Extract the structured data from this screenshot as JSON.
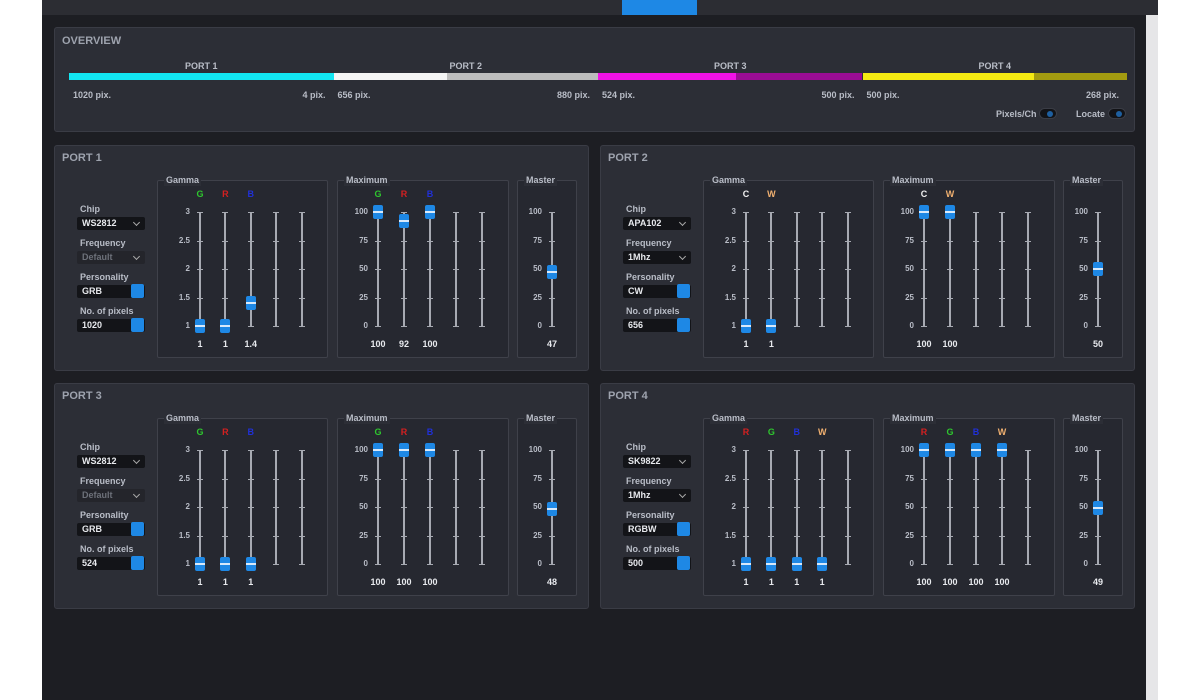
{
  "overview": {
    "title": "OVERVIEW",
    "ports": [
      {
        "label": "PORT 1",
        "start": "1020 pix.",
        "end": "4 pix.",
        "colors": [
          "#12e6f2",
          "#12e6f2"
        ]
      },
      {
        "label": "PORT 2",
        "start": "656 pix.",
        "end": "880 pix.",
        "colors": [
          "#f4f4f4",
          "#bdbdbd"
        ]
      },
      {
        "label": "PORT 3",
        "start": "524 pix.",
        "end": "500 pix.",
        "colors": [
          "#f012e6",
          "#9a0c94"
        ]
      },
      {
        "label": "PORT 4",
        "start": "500 pix.",
        "end": "268 pix.",
        "colors": [
          "#f5ea12",
          "#a39b10"
        ]
      }
    ],
    "toggles": [
      "Pixels/Ch",
      "Locate"
    ]
  },
  "ports": [
    {
      "title": "PORT 1",
      "settings": [
        {
          "label": "Chip",
          "value": "WS2812"
        },
        {
          "label": "Frequency",
          "value": "Default",
          "disabled": true
        },
        {
          "label": "Personality",
          "value": "GRB"
        },
        {
          "label": "No. of pixels",
          "value": "1020"
        }
      ],
      "gamma": {
        "title": "Gamma",
        "ticks": [
          3,
          2.5,
          2,
          1.5,
          1
        ],
        "channels": [
          {
            "name": "G",
            "color": "#2ec62e"
          },
          {
            "name": "R",
            "color": "#d42020"
          },
          {
            "name": "B",
            "color": "#2030d8"
          }
        ],
        "values": [
          1,
          1,
          1.4
        ]
      },
      "maximum": {
        "title": "Maximum",
        "ticks": [
          100,
          75,
          50,
          25,
          0
        ],
        "channels": [
          {
            "name": "G",
            "color": "#2ec62e"
          },
          {
            "name": "R",
            "color": "#d42020"
          },
          {
            "name": "B",
            "color": "#2030d8"
          }
        ],
        "values": [
          100,
          92,
          100
        ]
      },
      "master": {
        "title": "Master",
        "ticks": [
          100,
          75,
          50,
          25,
          0
        ],
        "values": [
          47
        ]
      }
    },
    {
      "title": "PORT 2",
      "settings": [
        {
          "label": "Chip",
          "value": "APA102"
        },
        {
          "label": "Frequency",
          "value": "1Mhz"
        },
        {
          "label": "Personality",
          "value": "CW"
        },
        {
          "label": "No. of pixels",
          "value": "656"
        }
      ],
      "gamma": {
        "title": "Gamma",
        "ticks": [
          3,
          2.5,
          2,
          1.5,
          1
        ],
        "channels": [
          {
            "name": "C",
            "color": "#f2f2f2"
          },
          {
            "name": "W",
            "color": "#f0b070"
          }
        ],
        "values": [
          1,
          1
        ]
      },
      "maximum": {
        "title": "Maximum",
        "ticks": [
          100,
          75,
          50,
          25,
          0
        ],
        "channels": [
          {
            "name": "C",
            "color": "#f2f2f2"
          },
          {
            "name": "W",
            "color": "#f0b070"
          }
        ],
        "values": [
          100,
          100
        ]
      },
      "master": {
        "title": "Master",
        "ticks": [
          100,
          75,
          50,
          25,
          0
        ],
        "values": [
          50
        ]
      }
    },
    {
      "title": "PORT 3",
      "settings": [
        {
          "label": "Chip",
          "value": "WS2812"
        },
        {
          "label": "Frequency",
          "value": "Default",
          "disabled": true
        },
        {
          "label": "Personality",
          "value": "GRB"
        },
        {
          "label": "No. of pixels",
          "value": "524"
        }
      ],
      "gamma": {
        "title": "Gamma",
        "ticks": [
          3,
          2.5,
          2,
          1.5,
          1
        ],
        "channels": [
          {
            "name": "G",
            "color": "#2ec62e"
          },
          {
            "name": "R",
            "color": "#d42020"
          },
          {
            "name": "B",
            "color": "#2030d8"
          }
        ],
        "values": [
          1,
          1,
          1
        ]
      },
      "maximum": {
        "title": "Maximum",
        "ticks": [
          100,
          75,
          50,
          25,
          0
        ],
        "channels": [
          {
            "name": "G",
            "color": "#2ec62e"
          },
          {
            "name": "R",
            "color": "#d42020"
          },
          {
            "name": "B",
            "color": "#2030d8"
          }
        ],
        "values": [
          100,
          100,
          100
        ]
      },
      "master": {
        "title": "Master",
        "ticks": [
          100,
          75,
          50,
          25,
          0
        ],
        "values": [
          48
        ]
      }
    },
    {
      "title": "PORT 4",
      "settings": [
        {
          "label": "Chip",
          "value": "SK9822"
        },
        {
          "label": "Frequency",
          "value": "1Mhz"
        },
        {
          "label": "Personality",
          "value": "RGBW"
        },
        {
          "label": "No. of pixels",
          "value": "500"
        }
      ],
      "gamma": {
        "title": "Gamma",
        "ticks": [
          3,
          2.5,
          2,
          1.5,
          1
        ],
        "channels": [
          {
            "name": "R",
            "color": "#d42020"
          },
          {
            "name": "G",
            "color": "#2ec62e"
          },
          {
            "name": "B",
            "color": "#2030d8"
          },
          {
            "name": "W",
            "color": "#f0b070"
          }
        ],
        "values": [
          1,
          1,
          1,
          1
        ]
      },
      "maximum": {
        "title": "Maximum",
        "ticks": [
          100,
          75,
          50,
          25,
          0
        ],
        "channels": [
          {
            "name": "R",
            "color": "#d42020"
          },
          {
            "name": "G",
            "color": "#2ec62e"
          },
          {
            "name": "B",
            "color": "#2030d8"
          },
          {
            "name": "W",
            "color": "#f0b070"
          }
        ],
        "values": [
          100,
          100,
          100,
          100
        ]
      },
      "master": {
        "title": "Master",
        "ticks": [
          100,
          75,
          50,
          25,
          0
        ],
        "values": [
          49
        ]
      }
    }
  ]
}
